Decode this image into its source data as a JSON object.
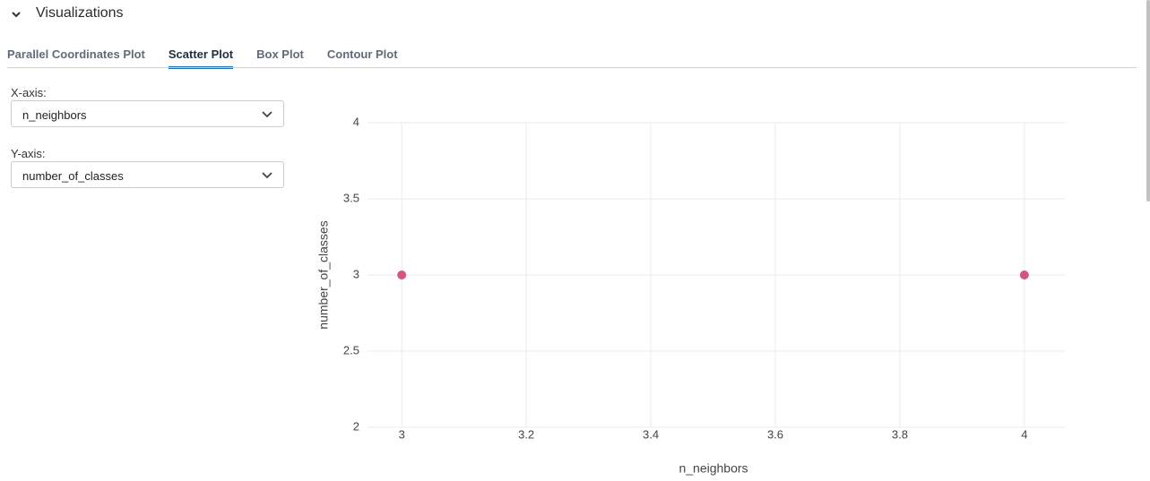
{
  "section": {
    "title": "Visualizations"
  },
  "tabs": [
    "Parallel Coordinates Plot",
    "Scatter Plot",
    "Box Plot",
    "Contour Plot"
  ],
  "active_tab": 1,
  "controls": [
    {
      "label": "X-axis:",
      "value": "n_neighbors"
    },
    {
      "label": "Y-axis:",
      "value": "number_of_classes"
    }
  ],
  "chart_data": {
    "type": "scatter",
    "x_label": "n_neighbors",
    "y_label": "number_of_classes",
    "x": [
      3,
      4
    ],
    "values": [
      3,
      3
    ],
    "color": "#d1577f",
    "xlim": [
      2.945,
      4.065
    ],
    "ylim": [
      2,
      4
    ],
    "xticks": [
      3,
      3.2,
      3.4,
      3.6,
      3.8,
      4
    ],
    "yticks": [
      2,
      2.5,
      3,
      3.5,
      4
    ],
    "grid": true
  }
}
